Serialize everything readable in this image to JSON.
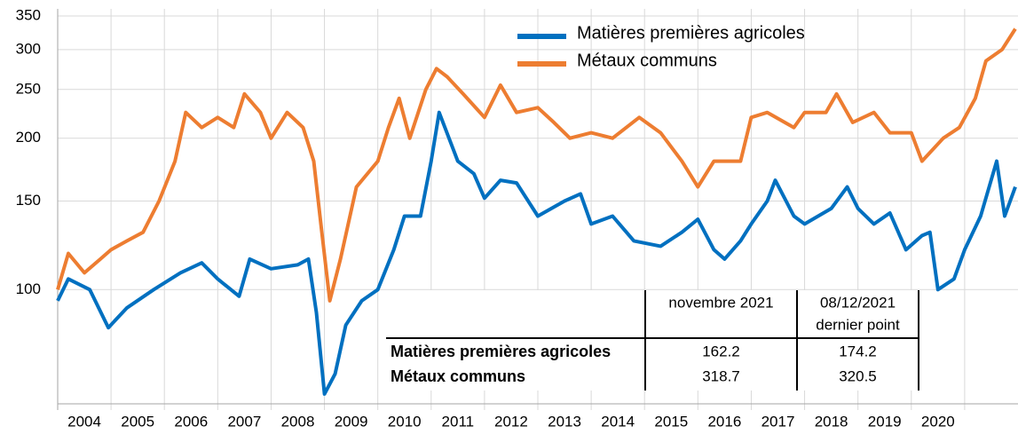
{
  "chart_data": {
    "type": "line",
    "log": true,
    "grid": true,
    "legend": "top-right",
    "xlim": [
      2004,
      2022
    ],
    "xticks": [
      {
        "value": 2004,
        "label": "2004"
      },
      {
        "value": 2005,
        "label": "2005"
      },
      {
        "value": 2006,
        "label": "2006"
      },
      {
        "value": 2007,
        "label": "2007"
      },
      {
        "value": 2008,
        "label": "2008"
      },
      {
        "value": 2009,
        "label": "2009"
      },
      {
        "value": 2010,
        "label": "2010"
      },
      {
        "value": 2011,
        "label": "2011"
      },
      {
        "value": 2012,
        "label": "2012"
      },
      {
        "value": 2013,
        "label": "2013"
      },
      {
        "value": 2014,
        "label": "2014"
      },
      {
        "value": 2015,
        "label": "2015"
      },
      {
        "value": 2016,
        "label": "2016"
      },
      {
        "value": 2017,
        "label": "2017"
      },
      {
        "value": 2018,
        "label": "2018"
      },
      {
        "value": 2019,
        "label": "2019"
      },
      {
        "value": 2020,
        "label": "2020"
      },
      {
        "value": 2021,
        "label": null
      }
    ],
    "ylim": [
      60,
      350
    ],
    "yticks": [
      100,
      150,
      200,
      250,
      300,
      350
    ],
    "series": [
      {
        "name": "Matières premières agricoles",
        "color": "#0070c0",
        "x": [
          2004.0,
          2004.2,
          2004.6,
          2004.95,
          2005.3,
          2005.8,
          2006.3,
          2006.7,
          2007.0,
          2007.4,
          2007.6,
          2008.0,
          2008.5,
          2008.7,
          2008.85,
          2009.0,
          2009.2,
          2009.4,
          2009.7,
          2010.0,
          2010.3,
          2010.5,
          2010.8,
          2011.0,
          2011.15,
          2011.5,
          2011.8,
          2012.0,
          2012.3,
          2012.6,
          2013.0,
          2013.5,
          2013.8,
          2014.0,
          2014.4,
          2014.8,
          2015.3,
          2015.7,
          2016.0,
          2016.3,
          2016.5,
          2016.8,
          2017.0,
          2017.3,
          2017.45,
          2017.8,
          2018.0,
          2018.5,
          2018.8,
          2019.0,
          2019.3,
          2019.6,
          2019.9,
          2020.2,
          2020.35,
          2020.5,
          2020.8,
          2021.0,
          2021.3,
          2021.6,
          2021.75,
          2021.95
        ],
        "values": [
          95,
          105,
          100,
          84,
          92,
          100,
          108,
          113,
          105,
          97,
          115,
          110,
          112,
          115,
          90,
          62,
          68,
          85,
          95,
          100,
          120,
          140,
          140,
          180,
          225,
          180,
          170,
          152,
          165,
          163,
          140,
          150,
          155,
          135,
          140,
          125,
          122,
          130,
          138,
          120,
          115,
          125,
          135,
          150,
          165,
          140,
          135,
          145,
          160,
          145,
          135,
          142,
          120,
          128,
          130,
          100,
          105,
          120,
          140,
          180,
          140,
          160
        ]
      },
      {
        "name": "Métaux communs",
        "color": "#ed7d31",
        "x": [
          2004.0,
          2004.2,
          2004.5,
          2004.8,
          2005.0,
          2005.3,
          2005.6,
          2005.9,
          2006.2,
          2006.4,
          2006.7,
          2007.0,
          2007.3,
          2007.5,
          2007.8,
          2008.0,
          2008.3,
          2008.6,
          2008.8,
          2008.95,
          2009.1,
          2009.3,
          2009.6,
          2010.0,
          2010.2,
          2010.4,
          2010.6,
          2010.9,
          2011.1,
          2011.3,
          2011.6,
          2012.0,
          2012.3,
          2012.6,
          2013.0,
          2013.3,
          2013.6,
          2014.0,
          2014.4,
          2014.9,
          2015.3,
          2015.7,
          2016.0,
          2016.3,
          2016.8,
          2017.0,
          2017.3,
          2017.8,
          2018.0,
          2018.4,
          2018.6,
          2018.9,
          2019.3,
          2019.6,
          2020.0,
          2020.2,
          2020.6,
          2020.9,
          2021.2,
          2021.4,
          2021.7,
          2021.95
        ],
        "values": [
          100,
          118,
          108,
          115,
          120,
          125,
          130,
          150,
          180,
          225,
          210,
          220,
          210,
          245,
          225,
          200,
          225,
          210,
          180,
          130,
          95,
          115,
          160,
          180,
          210,
          240,
          200,
          250,
          275,
          265,
          245,
          220,
          255,
          225,
          230,
          215,
          200,
          205,
          200,
          220,
          205,
          180,
          160,
          180,
          180,
          220,
          225,
          210,
          225,
          225,
          245,
          215,
          225,
          205,
          205,
          180,
          200,
          210,
          240,
          285,
          300,
          330
        ]
      }
    ],
    "table": {
      "headers": [
        [
          "novembre 2021"
        ],
        [
          "08/12/2021",
          "dernier point"
        ]
      ],
      "rows": [
        {
          "name": "Matières premières agricoles",
          "values": [
            162.2,
            174.2
          ]
        },
        {
          "name": "Métaux communs",
          "values": [
            318.7,
            320.5
          ]
        }
      ]
    }
  }
}
